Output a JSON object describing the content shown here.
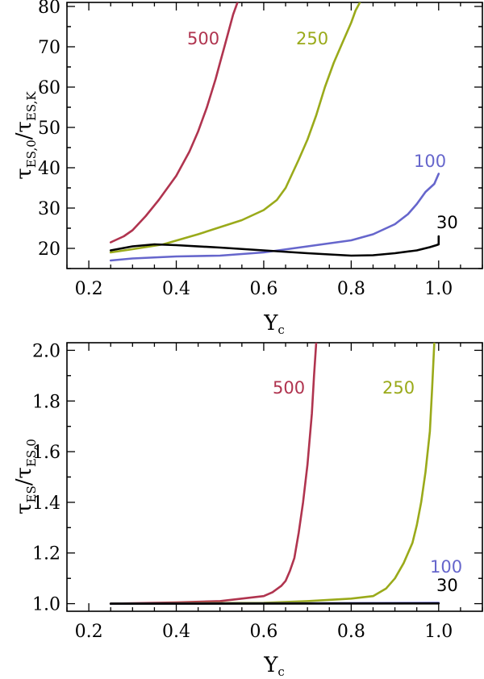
{
  "colors": {
    "m500": "#b0344f",
    "m250": "#9aaa1a",
    "m100": "#6666cc",
    "m30": "#000000"
  },
  "chart_data": [
    {
      "type": "line",
      "panel": "top",
      "xlabel": "Y_c",
      "ylabel": "τ_ES,0 / τ_ES,K",
      "xlim": [
        0.15,
        1.1
      ],
      "ylim": [
        15,
        81
      ],
      "xticks": [
        0.2,
        0.4,
        0.6,
        0.8,
        1.0
      ],
      "xtick_labels": [
        "0.2",
        "0.4",
        "0.6",
        "0.8",
        "1.0"
      ],
      "yticks": [
        20,
        30,
        40,
        50,
        60,
        70,
        80
      ],
      "ytick_labels": [
        "20",
        "30",
        "40",
        "50",
        "60",
        "70",
        "80"
      ],
      "series": [
        {
          "name": "500",
          "label": "500",
          "color_key": "m500",
          "x": [
            0.25,
            0.28,
            0.3,
            0.33,
            0.36,
            0.4,
            0.43,
            0.45,
            0.47,
            0.49,
            0.5,
            0.51,
            0.52,
            0.53,
            0.54
          ],
          "y": [
            21.5,
            23,
            24.5,
            28,
            32,
            38,
            44,
            49,
            55,
            62,
            66,
            70,
            74,
            78,
            81
          ]
        },
        {
          "name": "250",
          "label": "250",
          "color_key": "m250",
          "x": [
            0.25,
            0.3,
            0.37,
            0.45,
            0.55,
            0.6,
            0.63,
            0.65,
            0.68,
            0.7,
            0.72,
            0.74,
            0.76,
            0.78,
            0.8,
            0.81,
            0.82
          ],
          "y": [
            19,
            19.8,
            21,
            23.5,
            27,
            29.5,
            32,
            35,
            42,
            47,
            53,
            60,
            66,
            71,
            76,
            79,
            81
          ]
        },
        {
          "name": "100",
          "label": "100",
          "color_key": "m100",
          "x": [
            0.25,
            0.3,
            0.4,
            0.5,
            0.6,
            0.7,
            0.8,
            0.85,
            0.9,
            0.93,
            0.95,
            0.97,
            0.99,
            1.0
          ],
          "y": [
            17,
            17.5,
            18,
            18.2,
            19,
            20.5,
            22,
            23.5,
            26,
            28.5,
            31,
            34,
            36,
            38.5
          ]
        },
        {
          "name": "30",
          "label": "30",
          "color_key": "m30",
          "x": [
            0.25,
            0.3,
            0.35,
            0.4,
            0.5,
            0.6,
            0.7,
            0.8,
            0.85,
            0.9,
            0.95,
            0.98,
            0.995,
            1.0,
            1.0
          ],
          "y": [
            19.5,
            20.5,
            21,
            20.8,
            20.2,
            19.5,
            18.8,
            18.2,
            18.3,
            18.8,
            19.5,
            20.3,
            20.8,
            21,
            23
          ]
        }
      ]
    },
    {
      "type": "line",
      "panel": "bottom",
      "xlabel": "Y_c",
      "ylabel": "τ_ES / τ_ES,0",
      "xlim": [
        0.15,
        1.1
      ],
      "ylim": [
        0.97,
        2.03
      ],
      "xticks": [
        0.2,
        0.4,
        0.6,
        0.8,
        1.0
      ],
      "xtick_labels": [
        "0.2",
        "0.4",
        "0.6",
        "0.8",
        "1.0"
      ],
      "yticks": [
        1.0,
        1.2,
        1.4,
        1.6,
        1.8,
        2.0
      ],
      "ytick_labels": [
        "1.0",
        "1.2",
        "1.4",
        "1.6",
        "1.8",
        "2.0"
      ],
      "series": [
        {
          "name": "500",
          "label": "500",
          "color_key": "m500",
          "x": [
            0.25,
            0.4,
            0.5,
            0.55,
            0.6,
            0.62,
            0.64,
            0.65,
            0.66,
            0.67,
            0.68,
            0.69,
            0.7,
            0.71,
            0.715,
            0.72
          ],
          "y": [
            1.0,
            1.005,
            1.01,
            1.02,
            1.03,
            1.045,
            1.07,
            1.09,
            1.13,
            1.18,
            1.28,
            1.4,
            1.55,
            1.75,
            1.9,
            2.03
          ]
        },
        {
          "name": "250",
          "label": "250",
          "color_key": "m250",
          "x": [
            0.25,
            0.6,
            0.7,
            0.8,
            0.85,
            0.88,
            0.9,
            0.92,
            0.94,
            0.95,
            0.96,
            0.97,
            0.98,
            0.985,
            0.99
          ],
          "y": [
            1.0,
            1.003,
            1.01,
            1.02,
            1.03,
            1.06,
            1.1,
            1.16,
            1.24,
            1.31,
            1.4,
            1.52,
            1.68,
            1.85,
            2.03
          ]
        },
        {
          "name": "100",
          "label": "100",
          "color_key": "m100",
          "x": [
            0.25,
            1.0
          ],
          "y": [
            1.0,
            1.003
          ]
        },
        {
          "name": "30",
          "label": "30",
          "color_key": "m30",
          "x": [
            0.25,
            1.0
          ],
          "y": [
            1.0,
            1.001
          ]
        }
      ]
    }
  ],
  "labels": {
    "top": {
      "ylabel_main": "τ",
      "ylabel_sub1": "ES,0",
      "ylabel_sep": "/τ",
      "ylabel_sub2": "ES,K",
      "xlabel_main": "Y",
      "xlabel_sub": "c"
    },
    "bottom": {
      "ylabel_main": "τ",
      "ylabel_sub1": "ES",
      "ylabel_sep": "/τ",
      "ylabel_sub2": "ES,0",
      "xlabel_main": "Y",
      "xlabel_sub": "c"
    }
  }
}
